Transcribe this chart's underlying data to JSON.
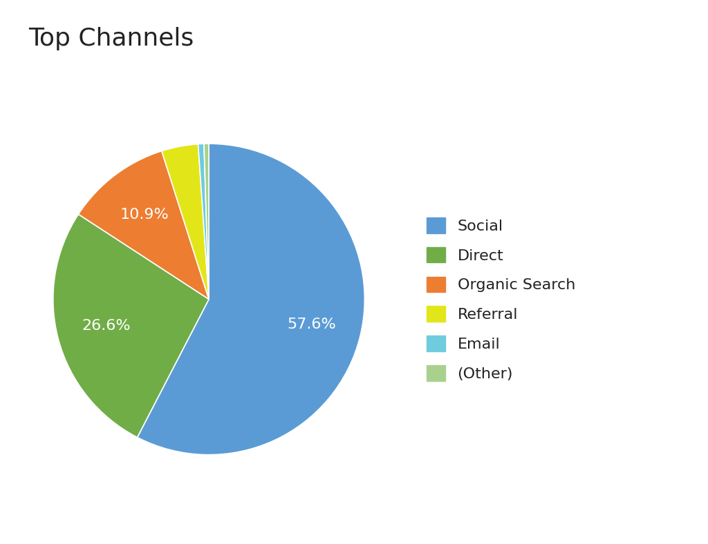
{
  "title": "Top Channels",
  "labels": [
    "Social",
    "Direct",
    "Organic Search",
    "Referral",
    "Email",
    "(Other)"
  ],
  "values": [
    57.6,
    26.6,
    10.9,
    3.8,
    0.6,
    0.5
  ],
  "colors": [
    "#5B9BD5",
    "#70AD47",
    "#ED7D31",
    "#E2E619",
    "#70CBDE",
    "#A9D18E"
  ],
  "pct_show": [
    true,
    true,
    true,
    false,
    false,
    false
  ],
  "pct_texts": [
    "57.6%",
    "26.6%",
    "10.9%",
    "",
    "",
    ""
  ],
  "title_fontsize": 26,
  "pct_fontsize": 16,
  "legend_fontsize": 16,
  "background_color": "#FFFFFF",
  "startangle": 90
}
